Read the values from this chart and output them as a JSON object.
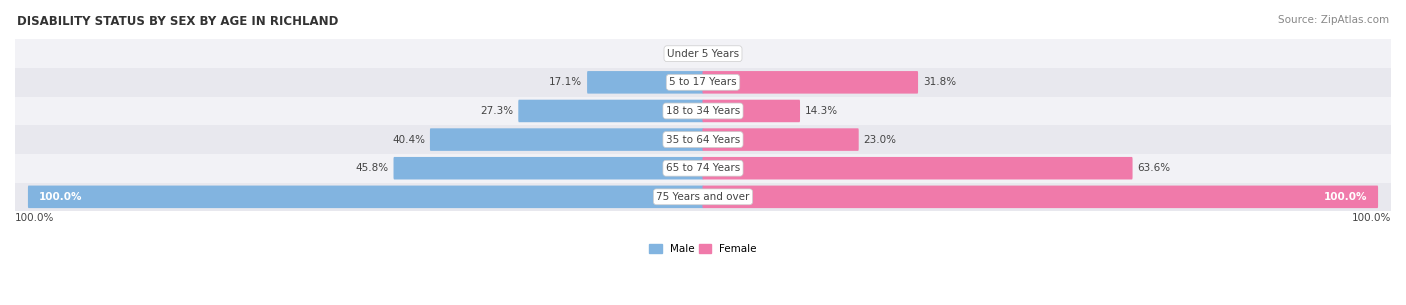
{
  "title": "DISABILITY STATUS BY SEX BY AGE IN RICHLAND",
  "source": "Source: ZipAtlas.com",
  "categories": [
    "Under 5 Years",
    "5 to 17 Years",
    "18 to 34 Years",
    "35 to 64 Years",
    "65 to 74 Years",
    "75 Years and over"
  ],
  "male_values": [
    0.0,
    17.1,
    27.3,
    40.4,
    45.8,
    100.0
  ],
  "female_values": [
    0.0,
    31.8,
    14.3,
    23.0,
    63.6,
    100.0
  ],
  "male_color": "#82b4e0",
  "female_color": "#f07aaa",
  "male_color_full": "#6aaad8",
  "female_color_full": "#ee5f99",
  "row_bg_even": "#f2f2f6",
  "row_bg_odd": "#e8e8ee",
  "max_value": 100.0,
  "label_color": "#444444",
  "title_color": "#333333",
  "legend_labels": [
    "Male",
    "Female"
  ],
  "figure_width": 14.06,
  "figure_height": 3.05,
  "source_fontsize": 7.5,
  "title_fontsize": 8.5,
  "bar_label_fontsize": 7.5,
  "category_fontsize": 7.5,
  "bottom_axis_label": "100.0%"
}
